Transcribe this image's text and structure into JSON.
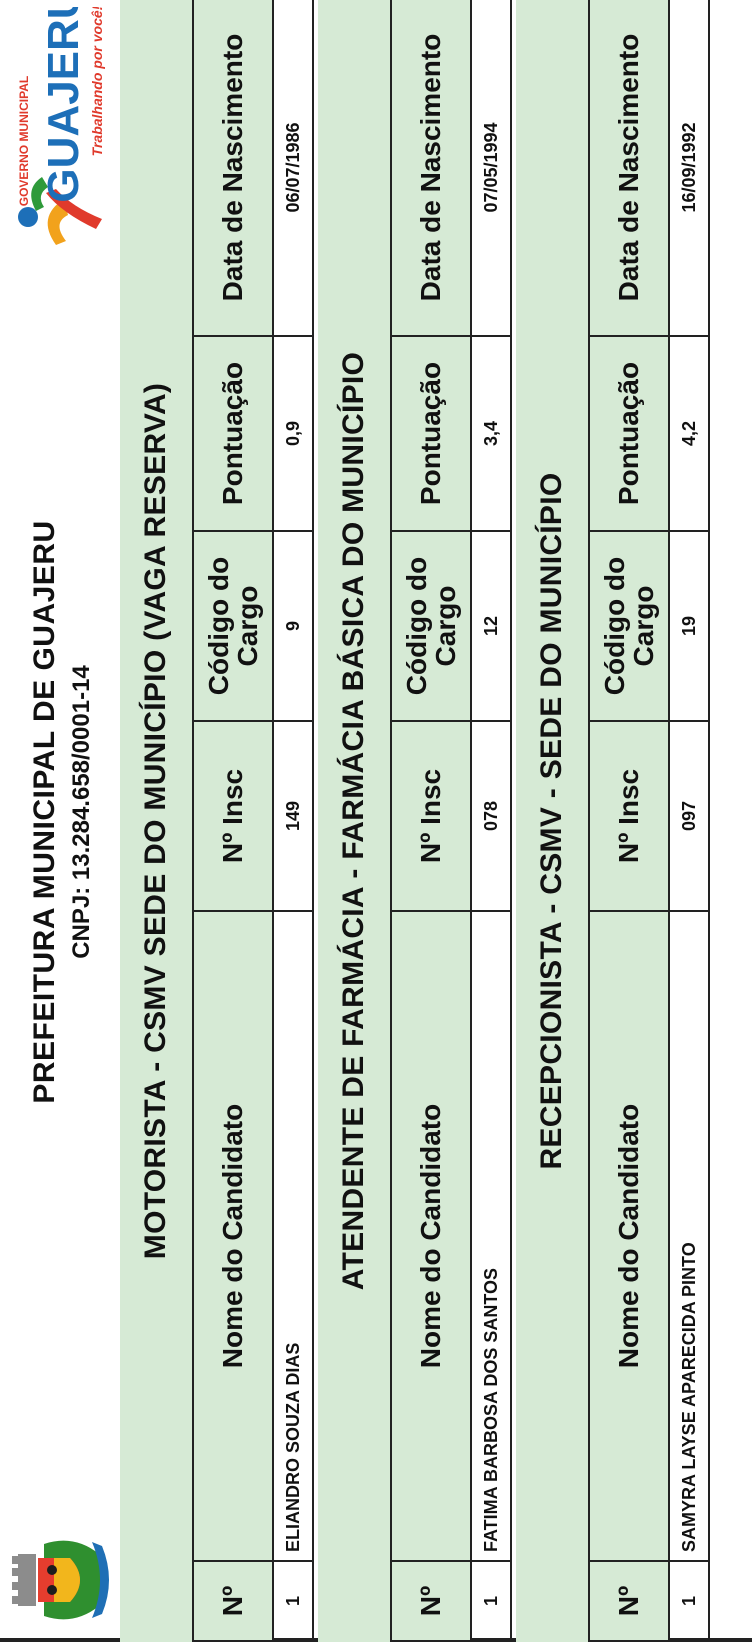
{
  "header": {
    "title": "PREFEITURA MUNICIPAL DE GUAJERU",
    "cnpj": "CNPJ: 13.284.658/0001-14",
    "logo": {
      "brand": "GUAJERU",
      "top_text": "GOVERNO MUNICIPAL",
      "tagline": "Trabalhando por você!"
    }
  },
  "columns": [
    "Nº",
    "Nome do Candidato",
    "Nº Insc",
    "Código do Cargo",
    "Pontuação",
    "Data de Nascimento"
  ],
  "sections": [
    {
      "title": "MOTORISTA - CSMV SEDE DO MUNICÍPIO (VAGA RESERVA)",
      "rows": [
        {
          "n": "1",
          "nome": "ELIANDRO SOUZA DIAS",
          "insc": "149",
          "cargo": "9",
          "pontuacao": "0,9",
          "nascimento": "06/07/1986"
        }
      ]
    },
    {
      "title": "ATENDENTE DE FARMÁCIA - FARMÁCIA BÁSICA DO MUNICÍPIO",
      "rows": [
        {
          "n": "1",
          "nome": "FATIMA BARBOSA DOS SANTOS",
          "insc": "078",
          "cargo": "12",
          "pontuacao": "3,4",
          "nascimento": "07/05/1994"
        }
      ]
    },
    {
      "title": "RECEPCIONISTA - CSMV - SEDE DO MUNICÍPIO",
      "rows": [
        {
          "n": "1",
          "nome": "SAMYRA LAYSE APARECIDA PINTO",
          "insc": "097",
          "cargo": "19",
          "pontuacao": "4,2",
          "nascimento": "16/09/1992"
        }
      ]
    }
  ],
  "colors": {
    "header_fill": "#d6ead5",
    "border": "#222222"
  }
}
